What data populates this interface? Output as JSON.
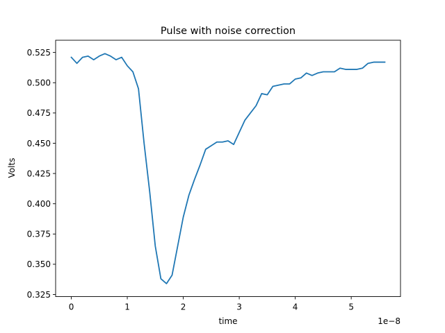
{
  "chart_data": {
    "type": "line",
    "title": "Pulse with noise correction",
    "xlabel": "time",
    "ylabel": "Volts",
    "x_offset_label": "1e−8",
    "xlim": [
      -0.28,
      5.88
    ],
    "ylim": [
      0.3233,
      0.5351
    ],
    "x_ticks": [
      {
        "value": 0,
        "label": "0"
      },
      {
        "value": 1,
        "label": "1"
      },
      {
        "value": 2,
        "label": "2"
      },
      {
        "value": 3,
        "label": "3"
      },
      {
        "value": 4,
        "label": "4"
      },
      {
        "value": 5,
        "label": "5"
      }
    ],
    "y_ticks": [
      {
        "value": 0.325,
        "label": "0.325"
      },
      {
        "value": 0.35,
        "label": "0.350"
      },
      {
        "value": 0.375,
        "label": "0.375"
      },
      {
        "value": 0.4,
        "label": "0.400"
      },
      {
        "value": 0.425,
        "label": "0.425"
      },
      {
        "value": 0.45,
        "label": "0.450"
      },
      {
        "value": 0.475,
        "label": "0.475"
      },
      {
        "value": 0.5,
        "label": "0.500"
      },
      {
        "value": 0.525,
        "label": "0.525"
      }
    ],
    "grid": false,
    "series": [
      {
        "color": "#1f77b4",
        "x": [
          0.0,
          0.1,
          0.2,
          0.3,
          0.4,
          0.5,
          0.6,
          0.7,
          0.8,
          0.9,
          1.0,
          1.1,
          1.2,
          1.3,
          1.4,
          1.5,
          1.6,
          1.7,
          1.8,
          1.9,
          2.0,
          2.1,
          2.2,
          2.3,
          2.4,
          2.5,
          2.6,
          2.7,
          2.8,
          2.9,
          3.0,
          3.1,
          3.2,
          3.3,
          3.4,
          3.5,
          3.6,
          3.7,
          3.8,
          3.9,
          4.0,
          4.1,
          4.2,
          4.3,
          4.4,
          4.5,
          4.6,
          4.7,
          4.8,
          4.9,
          5.0,
          5.1,
          5.2,
          5.3,
          5.4,
          5.5,
          5.6
        ],
        "y": [
          0.521,
          0.516,
          0.521,
          0.522,
          0.519,
          0.522,
          0.524,
          0.522,
          0.519,
          0.521,
          0.514,
          0.509,
          0.495,
          0.45,
          0.41,
          0.365,
          0.338,
          0.334,
          0.341,
          0.365,
          0.389,
          0.407,
          0.42,
          0.432,
          0.445,
          0.448,
          0.451,
          0.451,
          0.452,
          0.449,
          0.459,
          0.469,
          0.475,
          0.481,
          0.491,
          0.49,
          0.497,
          0.498,
          0.499,
          0.499,
          0.503,
          0.504,
          0.508,
          0.506,
          0.508,
          0.509,
          0.509,
          0.509,
          0.512,
          0.511,
          0.511,
          0.511,
          0.512,
          0.516,
          0.517,
          0.517,
          0.517
        ]
      }
    ]
  }
}
